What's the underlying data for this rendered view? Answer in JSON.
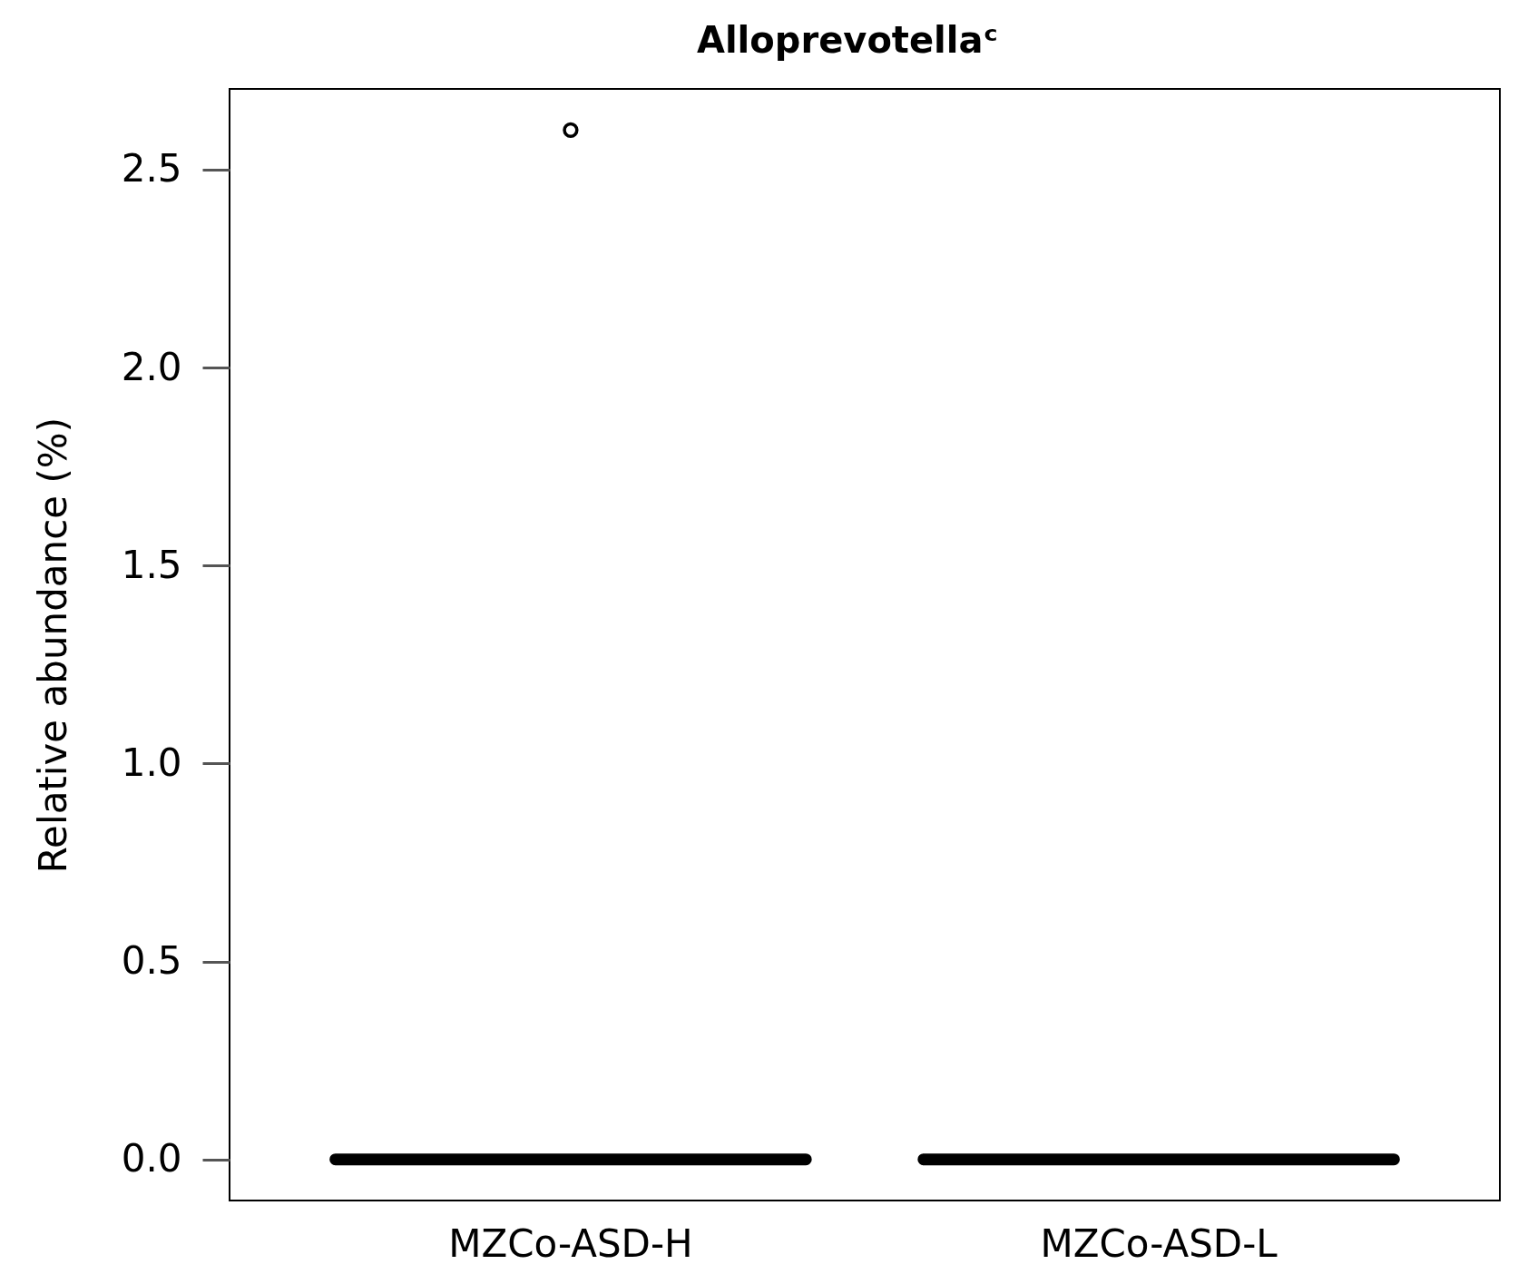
{
  "chart_data": {
    "type": "box",
    "title": "Alloprevotellaᶜ",
    "ylabel": "Relative abundance (%)",
    "categories": [
      "MZCo-ASD-H",
      "MZCo-ASD-L"
    ],
    "color": "#000000",
    "boxes": [
      {
        "low": 0,
        "q1": 0,
        "median": 0,
        "q3": 0,
        "high": 0,
        "outliers": [
          2.6
        ]
      },
      {
        "low": 0,
        "q1": 0,
        "median": 0,
        "q3": 0,
        "high": 0
      }
    ],
    "ylim": [
      -0.104,
      2.704
    ],
    "yticks": [
      {
        "value": 0,
        "label": "0.0"
      },
      0.5,
      {
        "value": 1,
        "label": "1.0"
      },
      1.5,
      {
        "value": 2,
        "label": "2.0"
      },
      2.5
    ]
  }
}
